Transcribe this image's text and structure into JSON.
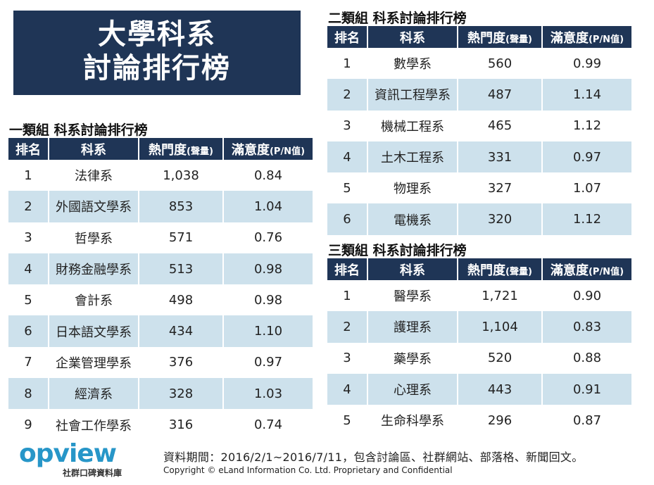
{
  "title": {
    "line1": "大學科系",
    "line2": "討論排行榜"
  },
  "groups": [
    {
      "title": "一類組  科系討論排行榜",
      "headers": {
        "rank": "排名",
        "dept": "科系",
        "heat": "熱門度",
        "heat_unit": "(聲量)",
        "sat": "滿意度",
        "sat_unit": "(P/N值)"
      },
      "rows": [
        {
          "rank": "1",
          "dept": "法律系",
          "heat": "1,038",
          "sat": "0.84"
        },
        {
          "rank": "2",
          "dept": "外國語文學系",
          "heat": "853",
          "sat": "1.04"
        },
        {
          "rank": "3",
          "dept": "哲學系",
          "heat": "571",
          "sat": "0.76"
        },
        {
          "rank": "4",
          "dept": "財務金融學系",
          "heat": "513",
          "sat": "0.98"
        },
        {
          "rank": "5",
          "dept": "會計系",
          "heat": "498",
          "sat": "0.98"
        },
        {
          "rank": "6",
          "dept": "日本語文學系",
          "heat": "434",
          "sat": "1.10"
        },
        {
          "rank": "7",
          "dept": "企業管理學系",
          "heat": "376",
          "sat": "0.97"
        },
        {
          "rank": "8",
          "dept": "經濟系",
          "heat": "328",
          "sat": "1.03"
        },
        {
          "rank": "9",
          "dept": "社會工作學系",
          "heat": "316",
          "sat": "0.74"
        }
      ]
    },
    {
      "title": "二類組  科系討論排行榜",
      "headers": {
        "rank": "排名",
        "dept": "科系",
        "heat": "熱門度",
        "heat_unit": "(聲量)",
        "sat": "滿意度",
        "sat_unit": "(P/N值)"
      },
      "rows": [
        {
          "rank": "1",
          "dept": "數學系",
          "heat": "560",
          "sat": "0.99"
        },
        {
          "rank": "2",
          "dept": "資訊工程學系",
          "heat": "487",
          "sat": "1.14"
        },
        {
          "rank": "3",
          "dept": "機械工程系",
          "heat": "465",
          "sat": "1.12"
        },
        {
          "rank": "4",
          "dept": "土木工程系",
          "heat": "331",
          "sat": "0.97"
        },
        {
          "rank": "5",
          "dept": "物理系",
          "heat": "327",
          "sat": "1.07"
        },
        {
          "rank": "6",
          "dept": "電機系",
          "heat": "320",
          "sat": "1.12"
        }
      ]
    },
    {
      "title": "三類組  科系討論排行榜",
      "headers": {
        "rank": "排名",
        "dept": "科系",
        "heat": "熱門度",
        "heat_unit": "(聲量)",
        "sat": "滿意度",
        "sat_unit": "(P/N值)"
      },
      "rows": [
        {
          "rank": "1",
          "dept": "醫學系",
          "heat": "1,721",
          "sat": "0.90"
        },
        {
          "rank": "2",
          "dept": "護理系",
          "heat": "1,104",
          "sat": "0.83"
        },
        {
          "rank": "3",
          "dept": "藥學系",
          "heat": "520",
          "sat": "0.88"
        },
        {
          "rank": "4",
          "dept": "心理系",
          "heat": "443",
          "sat": "0.91"
        },
        {
          "rank": "5",
          "dept": "生命科學系",
          "heat": "296",
          "sat": "0.87"
        }
      ]
    }
  ],
  "logo": {
    "text": "opview",
    "subtitle": "社群口碑資料庫"
  },
  "footer": {
    "period": "資料期間：2016/2/1~2016/7/11，包含討論區、社群網站、部落格、新聞回文。",
    "copyright": "Copyright © eLand Information Co. Ltd. Proprietary and Confidential"
  },
  "colors": {
    "header_bg": "#1f3556",
    "alt_row": "#cde1ec",
    "logo": "#2796c8"
  },
  "chart_data": {
    "type": "table",
    "tables": [
      {
        "title": "一類組  科系討論排行榜",
        "columns": [
          "排名",
          "科系",
          "熱門度(聲量)",
          "滿意度(P/N值)"
        ],
        "rows": [
          [
            1,
            "法律系",
            1038,
            0.84
          ],
          [
            2,
            "外國語文學系",
            853,
            1.04
          ],
          [
            3,
            "哲學系",
            571,
            0.76
          ],
          [
            4,
            "財務金融學系",
            513,
            0.98
          ],
          [
            5,
            "會計系",
            498,
            0.98
          ],
          [
            6,
            "日本語文學系",
            434,
            1.1
          ],
          [
            7,
            "企業管理學系",
            376,
            0.97
          ],
          [
            8,
            "經濟系",
            328,
            1.03
          ],
          [
            9,
            "社會工作學系",
            316,
            0.74
          ]
        ]
      },
      {
        "title": "二類組  科系討論排行榜",
        "columns": [
          "排名",
          "科系",
          "熱門度(聲量)",
          "滿意度(P/N值)"
        ],
        "rows": [
          [
            1,
            "數學系",
            560,
            0.99
          ],
          [
            2,
            "資訊工程學系",
            487,
            1.14
          ],
          [
            3,
            "機械工程系",
            465,
            1.12
          ],
          [
            4,
            "土木工程系",
            331,
            0.97
          ],
          [
            5,
            "物理系",
            327,
            1.07
          ],
          [
            6,
            "電機系",
            320,
            1.12
          ]
        ]
      },
      {
        "title": "三類組  科系討論排行榜",
        "columns": [
          "排名",
          "科系",
          "熱門度(聲量)",
          "滿意度(P/N值)"
        ],
        "rows": [
          [
            1,
            "醫學系",
            1721,
            0.9
          ],
          [
            2,
            "護理系",
            1104,
            0.83
          ],
          [
            3,
            "藥學系",
            520,
            0.88
          ],
          [
            4,
            "心理系",
            443,
            0.91
          ],
          [
            5,
            "生命科學系",
            296,
            0.87
          ]
        ]
      }
    ]
  }
}
